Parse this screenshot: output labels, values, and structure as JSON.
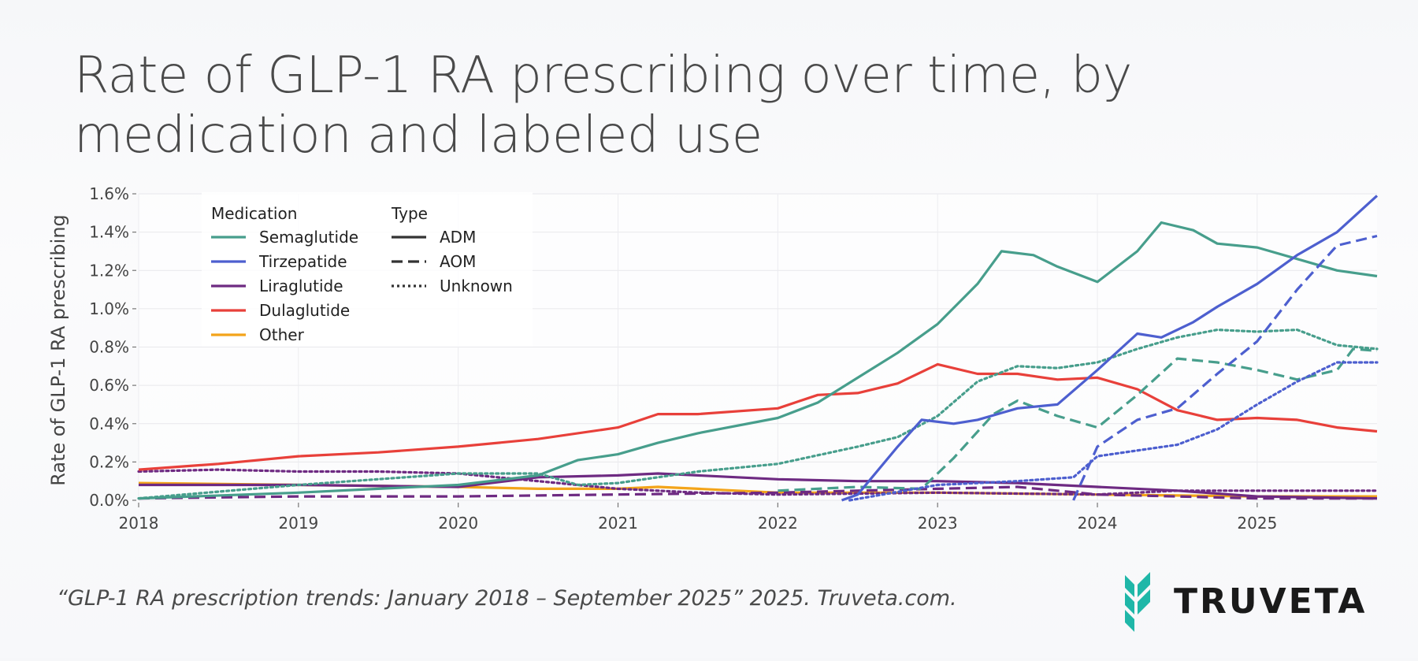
{
  "title": "Rate of GLP-1 RA prescribing over time, by medication and labeled use",
  "source": "“GLP-1 RA prescription trends: January 2018 – September 2025” 2025. Truveta.com.",
  "logo_text": "TRUVETA",
  "colors": {
    "brand_teal": "#1fb7a8",
    "Semaglutide": "#479e8c",
    "Tirzepatide": "#4d5fcf",
    "Liraglutide": "#6e2a82",
    "Dulaglutide": "#e8403a",
    "Other": "#f3a41a"
  },
  "chart_data": {
    "type": "line",
    "title": "Rate of GLP-1 RA prescribing over time, by medication and labeled use",
    "xlabel": "",
    "ylabel": "Rate of GLP-1 RA prescribing",
    "xlim": [
      2018.0,
      2025.75
    ],
    "ylim": [
      0.0,
      0.016
    ],
    "x_ticks": [
      2018,
      2019,
      2020,
      2021,
      2022,
      2023,
      2024,
      2025
    ],
    "y_ticks": [
      0.0,
      0.002,
      0.004,
      0.006,
      0.008,
      0.01,
      0.012,
      0.014,
      0.016
    ],
    "y_tick_labels": [
      "0.0%",
      "0.2%",
      "0.4%",
      "0.6%",
      "0.8%",
      "1.0%",
      "1.2%",
      "1.4%",
      "1.6%"
    ],
    "grid": true,
    "legend": {
      "placement": "top-left",
      "medication_title": "Medication",
      "medication_items": [
        "Semaglutide",
        "Tirzepatide",
        "Liraglutide",
        "Dulaglutide",
        "Other"
      ],
      "type_title": "Type",
      "type_items": [
        {
          "label": "ADM",
          "style": "solid"
        },
        {
          "label": "AOM",
          "style": "dashed"
        },
        {
          "label": "Unknown",
          "style": "dotted"
        }
      ]
    },
    "series": [
      {
        "medication": "Semaglutide",
        "type": "ADM",
        "points": [
          [
            2018.0,
            0.0001
          ],
          [
            2019.0,
            0.0004
          ],
          [
            2020.0,
            0.0008
          ],
          [
            2020.5,
            0.0013
          ],
          [
            2020.75,
            0.0021
          ],
          [
            2021.0,
            0.0024
          ],
          [
            2021.25,
            0.003
          ],
          [
            2021.5,
            0.0035
          ],
          [
            2022.0,
            0.0043
          ],
          [
            2022.25,
            0.0051
          ],
          [
            2022.5,
            0.0064
          ],
          [
            2022.75,
            0.0077
          ],
          [
            2023.0,
            0.0092
          ],
          [
            2023.25,
            0.0113
          ],
          [
            2023.4,
            0.013
          ],
          [
            2023.6,
            0.0128
          ],
          [
            2023.75,
            0.0122
          ],
          [
            2024.0,
            0.0114
          ],
          [
            2024.25,
            0.013
          ],
          [
            2024.4,
            0.0145
          ],
          [
            2024.6,
            0.0141
          ],
          [
            2024.75,
            0.0134
          ],
          [
            2025.0,
            0.0132
          ],
          [
            2025.25,
            0.0126
          ],
          [
            2025.5,
            0.012
          ],
          [
            2025.75,
            0.0117
          ]
        ]
      },
      {
        "medication": "Semaglutide",
        "type": "AOM",
        "points": [
          [
            2022.0,
            0.0005
          ],
          [
            2022.5,
            0.0007
          ],
          [
            2022.9,
            0.0006
          ],
          [
            2023.1,
            0.0022
          ],
          [
            2023.35,
            0.0045
          ],
          [
            2023.5,
            0.0052
          ],
          [
            2023.75,
            0.0044
          ],
          [
            2024.0,
            0.0038
          ],
          [
            2024.25,
            0.0055
          ],
          [
            2024.5,
            0.0074
          ],
          [
            2024.75,
            0.0072
          ],
          [
            2025.0,
            0.0068
          ],
          [
            2025.25,
            0.0063
          ],
          [
            2025.5,
            0.0068
          ],
          [
            2025.6,
            0.0079
          ],
          [
            2025.75,
            0.0078
          ]
        ]
      },
      {
        "medication": "Semaglutide",
        "type": "Unknown",
        "points": [
          [
            2018.0,
            0.0001
          ],
          [
            2019.0,
            0.0008
          ],
          [
            2020.0,
            0.0014
          ],
          [
            2020.5,
            0.0014
          ],
          [
            2020.75,
            0.0008
          ],
          [
            2021.0,
            0.0009
          ],
          [
            2021.5,
            0.0015
          ],
          [
            2022.0,
            0.0019
          ],
          [
            2022.5,
            0.0028
          ],
          [
            2022.75,
            0.0033
          ],
          [
            2023.0,
            0.0044
          ],
          [
            2023.25,
            0.0062
          ],
          [
            2023.5,
            0.007
          ],
          [
            2023.75,
            0.0069
          ],
          [
            2024.0,
            0.0072
          ],
          [
            2024.25,
            0.0079
          ],
          [
            2024.5,
            0.0085
          ],
          [
            2024.75,
            0.0089
          ],
          [
            2025.0,
            0.0088
          ],
          [
            2025.25,
            0.0089
          ],
          [
            2025.5,
            0.0081
          ],
          [
            2025.75,
            0.0079
          ]
        ]
      },
      {
        "medication": "Tirzepatide",
        "type": "ADM",
        "points": [
          [
            2022.4,
            0.0
          ],
          [
            2022.5,
            0.0003
          ],
          [
            2022.75,
            0.0028
          ],
          [
            2022.9,
            0.0042
          ],
          [
            2023.1,
            0.004
          ],
          [
            2023.25,
            0.0042
          ],
          [
            2023.5,
            0.0048
          ],
          [
            2023.75,
            0.005
          ],
          [
            2024.0,
            0.0068
          ],
          [
            2024.25,
            0.0087
          ],
          [
            2024.4,
            0.0085
          ],
          [
            2024.6,
            0.0093
          ],
          [
            2024.75,
            0.0101
          ],
          [
            2025.0,
            0.0113
          ],
          [
            2025.25,
            0.0128
          ],
          [
            2025.5,
            0.014
          ],
          [
            2025.75,
            0.0159
          ]
        ]
      },
      {
        "medication": "Tirzepatide",
        "type": "AOM",
        "points": [
          [
            2023.85,
            0.0
          ],
          [
            2024.0,
            0.0028
          ],
          [
            2024.25,
            0.0042
          ],
          [
            2024.5,
            0.0048
          ],
          [
            2024.75,
            0.0066
          ],
          [
            2025.0,
            0.0083
          ],
          [
            2025.25,
            0.011
          ],
          [
            2025.5,
            0.0133
          ],
          [
            2025.75,
            0.0138
          ]
        ]
      },
      {
        "medication": "Tirzepatide",
        "type": "Unknown",
        "points": [
          [
            2022.45,
            0.0
          ],
          [
            2023.0,
            0.0008
          ],
          [
            2023.5,
            0.001
          ],
          [
            2023.85,
            0.0012
          ],
          [
            2024.0,
            0.0023
          ],
          [
            2024.25,
            0.0026
          ],
          [
            2024.5,
            0.0029
          ],
          [
            2024.75,
            0.0037
          ],
          [
            2025.0,
            0.005
          ],
          [
            2025.25,
            0.0062
          ],
          [
            2025.5,
            0.0072
          ],
          [
            2025.75,
            0.0072
          ]
        ]
      },
      {
        "medication": "Liraglutide",
        "type": "ADM",
        "points": [
          [
            2018.0,
            0.0008
          ],
          [
            2019.0,
            0.0008
          ],
          [
            2020.0,
            0.0007
          ],
          [
            2020.5,
            0.0012
          ],
          [
            2021.0,
            0.0013
          ],
          [
            2021.25,
            0.0014
          ],
          [
            2021.5,
            0.0013
          ],
          [
            2022.0,
            0.0011
          ],
          [
            2022.5,
            0.001
          ],
          [
            2023.0,
            0.001
          ],
          [
            2023.5,
            0.0009
          ],
          [
            2024.0,
            0.0007
          ],
          [
            2024.5,
            0.0005
          ],
          [
            2025.0,
            0.0002
          ],
          [
            2025.75,
            0.0001
          ]
        ]
      },
      {
        "medication": "Liraglutide",
        "type": "AOM",
        "points": [
          [
            2018.0,
            0.0001
          ],
          [
            2019.0,
            0.0002
          ],
          [
            2020.0,
            0.0002
          ],
          [
            2021.0,
            0.0003
          ],
          [
            2022.0,
            0.0004
          ],
          [
            2023.0,
            0.0006
          ],
          [
            2023.5,
            0.0007
          ],
          [
            2024.0,
            0.0003
          ],
          [
            2025.0,
            0.0001
          ],
          [
            2025.75,
            0.0001
          ]
        ]
      },
      {
        "medication": "Liraglutide",
        "type": "Unknown",
        "points": [
          [
            2018.0,
            0.0015
          ],
          [
            2018.5,
            0.0016
          ],
          [
            2019.0,
            0.0015
          ],
          [
            2019.5,
            0.0015
          ],
          [
            2020.0,
            0.0014
          ],
          [
            2020.5,
            0.001
          ],
          [
            2021.0,
            0.0006
          ],
          [
            2021.5,
            0.0004
          ],
          [
            2022.0,
            0.0003
          ],
          [
            2023.0,
            0.0004
          ],
          [
            2024.0,
            0.0003
          ],
          [
            2024.5,
            0.0005
          ],
          [
            2025.0,
            0.0005
          ],
          [
            2025.75,
            0.0005
          ]
        ]
      },
      {
        "medication": "Dulaglutide",
        "type": "ADM",
        "points": [
          [
            2018.0,
            0.0016
          ],
          [
            2018.5,
            0.0019
          ],
          [
            2019.0,
            0.0023
          ],
          [
            2019.5,
            0.0025
          ],
          [
            2020.0,
            0.0028
          ],
          [
            2020.5,
            0.0032
          ],
          [
            2021.0,
            0.0038
          ],
          [
            2021.25,
            0.0045
          ],
          [
            2021.5,
            0.0045
          ],
          [
            2022.0,
            0.0048
          ],
          [
            2022.25,
            0.0055
          ],
          [
            2022.5,
            0.0056
          ],
          [
            2022.75,
            0.0061
          ],
          [
            2023.0,
            0.0071
          ],
          [
            2023.25,
            0.0066
          ],
          [
            2023.5,
            0.0066
          ],
          [
            2023.75,
            0.0063
          ],
          [
            2024.0,
            0.0064
          ],
          [
            2024.25,
            0.0058
          ],
          [
            2024.5,
            0.0047
          ],
          [
            2024.75,
            0.0042
          ],
          [
            2025.0,
            0.0043
          ],
          [
            2025.25,
            0.0042
          ],
          [
            2025.5,
            0.0038
          ],
          [
            2025.75,
            0.0036
          ]
        ]
      },
      {
        "medication": "Other",
        "type": "ADM",
        "points": [
          [
            2018.0,
            0.0009
          ],
          [
            2019.0,
            0.0008
          ],
          [
            2020.0,
            0.0007
          ],
          [
            2020.5,
            0.0006
          ],
          [
            2021.0,
            0.0006
          ],
          [
            2021.25,
            0.0007
          ],
          [
            2021.5,
            0.0006
          ],
          [
            2022.0,
            0.0004
          ],
          [
            2022.5,
            0.0004
          ],
          [
            2023.0,
            0.0004
          ],
          [
            2024.0,
            0.0003
          ],
          [
            2025.0,
            0.0002
          ],
          [
            2025.75,
            0.0002
          ]
        ]
      }
    ]
  }
}
